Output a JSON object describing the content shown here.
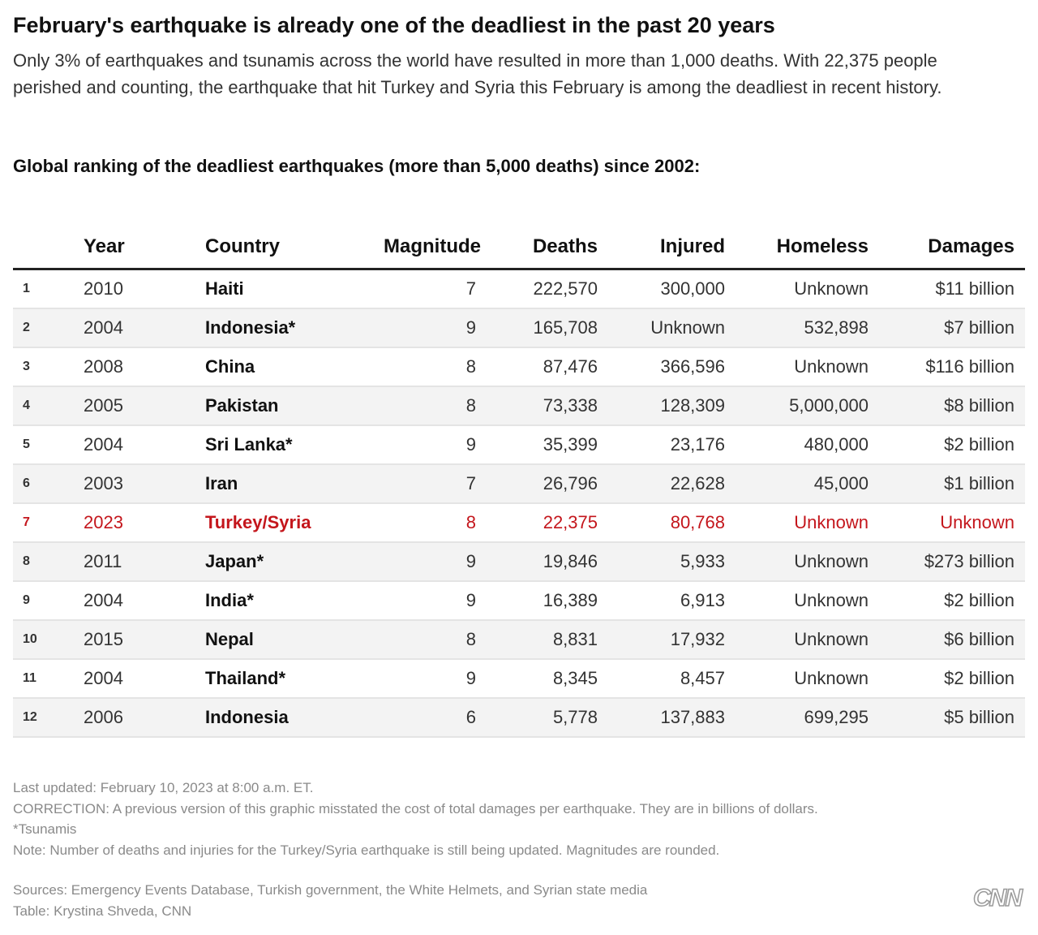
{
  "header": {
    "title": "February's earthquake is already one of the deadliest in the past 20 years",
    "subtitle": "Only 3% of earthquakes and tsunamis across the world have resulted in more than 1,000 deaths. With 22,375 people perished and counting, the earthquake that hit Turkey and Syria this February is among the deadliest in recent history."
  },
  "table": {
    "caption": "Global ranking of the deadliest earthquakes (more than 5,000 deaths) since 2002:",
    "columns": [
      "Year",
      "Country",
      "Magnitude",
      "Deaths",
      "Injured",
      "Homeless",
      "Damages"
    ],
    "rows": [
      {
        "cells": [
          "1",
          "2010",
          "Haiti",
          "7",
          "222,570",
          "300,000",
          "Unknown",
          "$11 billion"
        ]
      },
      {
        "cells": [
          "2",
          "2004",
          "Indonesia*",
          "9",
          "165,708",
          "Unknown",
          "532,898",
          "$7 billion"
        ]
      },
      {
        "cells": [
          "3",
          "2008",
          "China",
          "8",
          "87,476",
          "366,596",
          "Unknown",
          "$116 billion"
        ]
      },
      {
        "cells": [
          "4",
          "2005",
          "Pakistan",
          "8",
          "73,338",
          "128,309",
          "5,000,000",
          "$8 billion"
        ]
      },
      {
        "cells": [
          "5",
          "2004",
          "Sri Lanka*",
          "9",
          "35,399",
          "23,176",
          "480,000",
          "$2 billion"
        ]
      },
      {
        "cells": [
          "6",
          "2003",
          "Iran",
          "7",
          "26,796",
          "22,628",
          "45,000",
          "$1 billion"
        ]
      },
      {
        "cells": [
          "7",
          "2023",
          "Turkey/Syria",
          "8",
          "22,375",
          "80,768",
          "Unknown",
          "Unknown"
        ],
        "color": "#c4161c"
      },
      {
        "cells": [
          "8",
          "2011",
          "Japan*",
          "9",
          "19,846",
          "5,933",
          "Unknown",
          "$273 billion"
        ]
      },
      {
        "cells": [
          "9",
          "2004",
          "India*",
          "9",
          "16,389",
          "6,913",
          "Unknown",
          "$2 billion"
        ]
      },
      {
        "cells": [
          "10",
          "2015",
          "Nepal",
          "8",
          "8,831",
          "17,932",
          "Unknown",
          "$6 billion"
        ]
      },
      {
        "cells": [
          "11",
          "2004",
          "Thailand*",
          "9",
          "8,345",
          "8,457",
          "Unknown",
          "$2 billion"
        ]
      },
      {
        "cells": [
          "12",
          "2006",
          "Indonesia",
          "6",
          "5,778",
          "137,883",
          "699,295",
          "$5 billion"
        ]
      }
    ]
  },
  "footer": {
    "notes": [
      "Last updated: February 10, 2023 at 8:00 a.m. ET.",
      "CORRECTION: A previous version of this graphic misstated the cost of total damages per earthquake. They are in billions of dollars.",
      "*Tsunamis",
      "Note: Number of deaths and injuries for the Turkey/Syria earthquake is still being updated. Magnitudes are rounded."
    ],
    "sources": [
      "Sources: Emergency Events Database, Turkish government, the White Helmets, and Syrian state media",
      "Table: Krystina Shveda, CNN"
    ],
    "logo": "CNN"
  }
}
